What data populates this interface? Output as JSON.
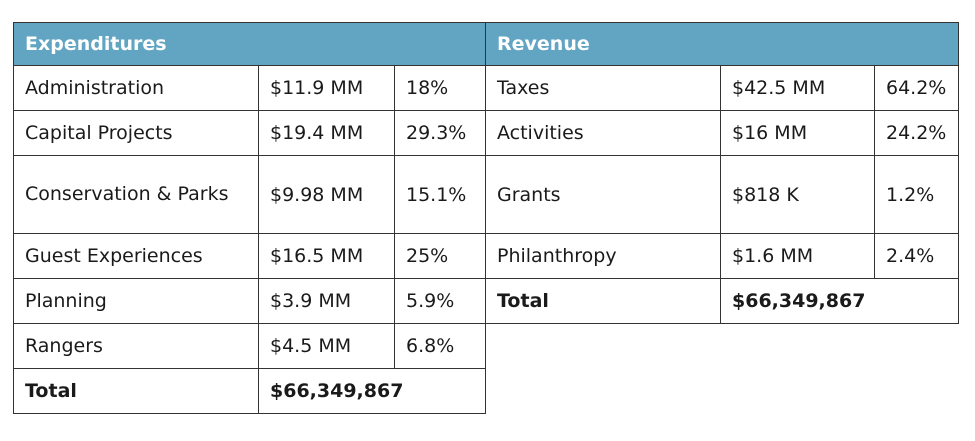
{
  "expenditures": {
    "title": "Expenditures",
    "rows": [
      {
        "name": "Administration",
        "amount": "$11.9 MM",
        "percent": "18%"
      },
      {
        "name": "Capital Projects",
        "amount": "$19.4 MM",
        "percent": "29.3%"
      },
      {
        "name": "Conservation & Parks",
        "amount": "$9.98 MM",
        "percent": "15.1%"
      },
      {
        "name": "Guest Experiences",
        "amount": "$16.5 MM",
        "percent": "25%"
      },
      {
        "name": "Planning",
        "amount": "$3.9 MM",
        "percent": "5.9%"
      },
      {
        "name": "Rangers",
        "amount": "$4.5 MM",
        "percent": "6.8%"
      }
    ],
    "total_label": "Total",
    "total_value": "$66,349,867"
  },
  "revenue": {
    "title": "Revenue",
    "rows": [
      {
        "name": "Taxes",
        "amount": "$42.5 MM",
        "percent": "64.2%"
      },
      {
        "name": "Activities",
        "amount": "$16 MM",
        "percent": "24.2%"
      },
      {
        "name": "Grants",
        "amount": "$818 K",
        "percent": "1.2%"
      },
      {
        "name": "Philanthropy",
        "amount": "$1.6 MM",
        "percent": "2.4%"
      }
    ],
    "total_label": "Total",
    "total_value": "$66,349,867"
  },
  "colors": {
    "header_background": "#61a5c2",
    "header_text": "#ffffff",
    "border": "#333333"
  }
}
